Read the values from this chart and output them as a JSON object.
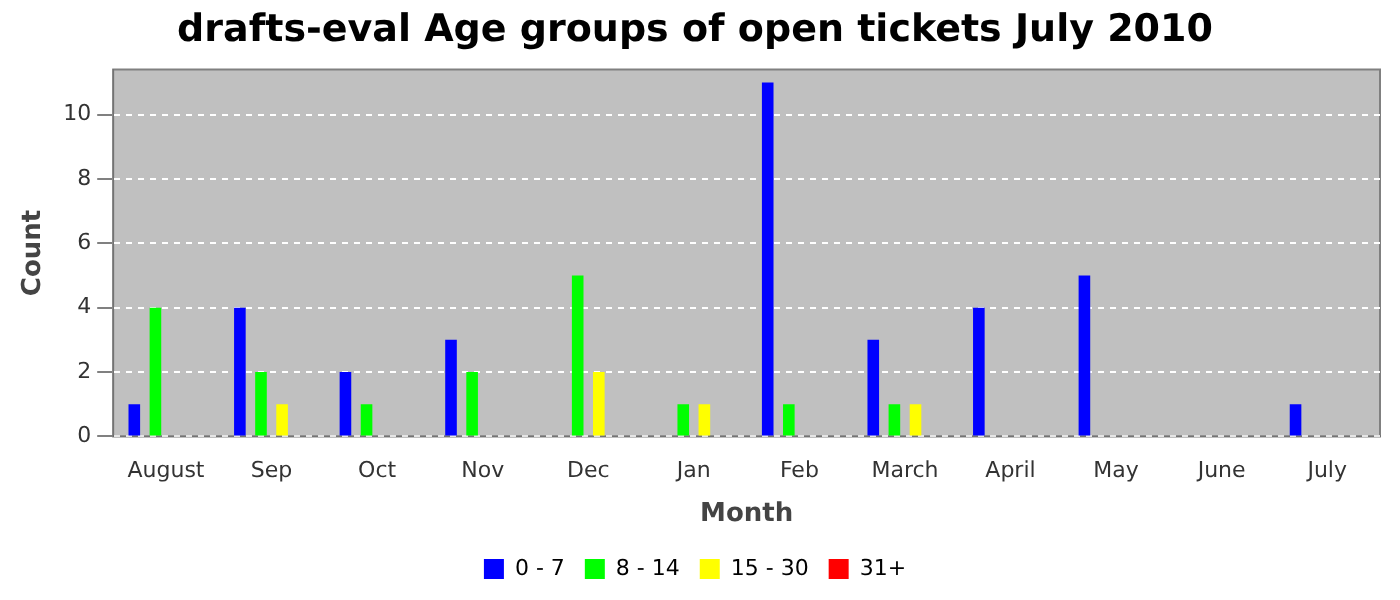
{
  "chart_data": {
    "type": "bar",
    "title": "drafts-eval Age groups of open tickets July 2010",
    "xlabel": "Month",
    "ylabel": "Count",
    "categories": [
      "August",
      "Sep",
      "Oct",
      "Nov",
      "Dec",
      "Jan",
      "Feb",
      "March",
      "April",
      "May",
      "June",
      "July"
    ],
    "series": [
      {
        "name": "0 - 7",
        "color": "#0000ff",
        "values": [
          1,
          4,
          2,
          3,
          0,
          0,
          11,
          3,
          4,
          5,
          0,
          1
        ]
      },
      {
        "name": "8 - 14",
        "color": "#00ff00",
        "values": [
          4,
          2,
          1,
          2,
          5,
          1,
          1,
          1,
          0,
          0,
          0,
          0
        ]
      },
      {
        "name": "15 - 30",
        "color": "#ffff00",
        "values": [
          0,
          1,
          0,
          0,
          2,
          1,
          0,
          1,
          0,
          0,
          0,
          0
        ]
      },
      {
        "name": "31+",
        "color": "#ff0000",
        "values": [
          0,
          0,
          0,
          0,
          0,
          0,
          0,
          0,
          0,
          0,
          0,
          0
        ]
      }
    ],
    "ylim": [
      0,
      11.4
    ],
    "yticks": [
      0,
      2,
      4,
      6,
      8,
      10
    ],
    "grid": "y",
    "legend": "bottom"
  }
}
